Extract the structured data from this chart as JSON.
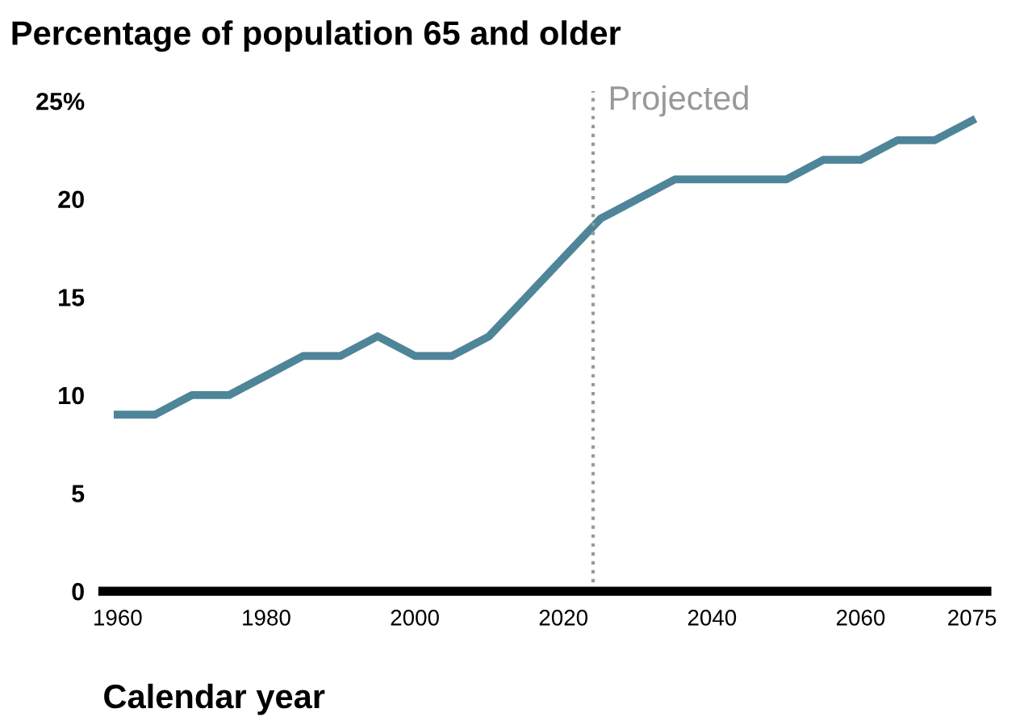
{
  "chart_data": {
    "type": "line",
    "title": "Percentage of population 65 and older",
    "xlabel": "Calendar year",
    "x": [
      1960,
      1965,
      1970,
      1975,
      1980,
      1985,
      1990,
      1995,
      2000,
      2005,
      2010,
      2015,
      2020,
      2025,
      2030,
      2035,
      2040,
      2045,
      2050,
      2055,
      2060,
      2065,
      2070,
      2075
    ],
    "series": [
      {
        "color": "#4e8599",
        "values": [
          9,
          9,
          10,
          10,
          11,
          12,
          12,
          13,
          12,
          12,
          13,
          15,
          17,
          19,
          20,
          21,
          21,
          21,
          21,
          22,
          22,
          23,
          23,
          24
        ]
      }
    ],
    "xlim": [
      1958,
      2077
    ],
    "xticks": [
      1960,
      1980,
      2000,
      2020,
      2040,
      2060,
      2075
    ],
    "ylim": [
      0,
      25
    ],
    "yticks": [
      0,
      5,
      10,
      15,
      20,
      {
        "value": 25,
        "label": "25%"
      }
    ],
    "ref_lines": [
      {
        "axis": "x",
        "value": 2024,
        "label": "Projected",
        "color": "#999999",
        "line_style": "dotted"
      }
    ],
    "grid": false,
    "legend": false,
    "marker": "none",
    "line_style": "solid"
  }
}
